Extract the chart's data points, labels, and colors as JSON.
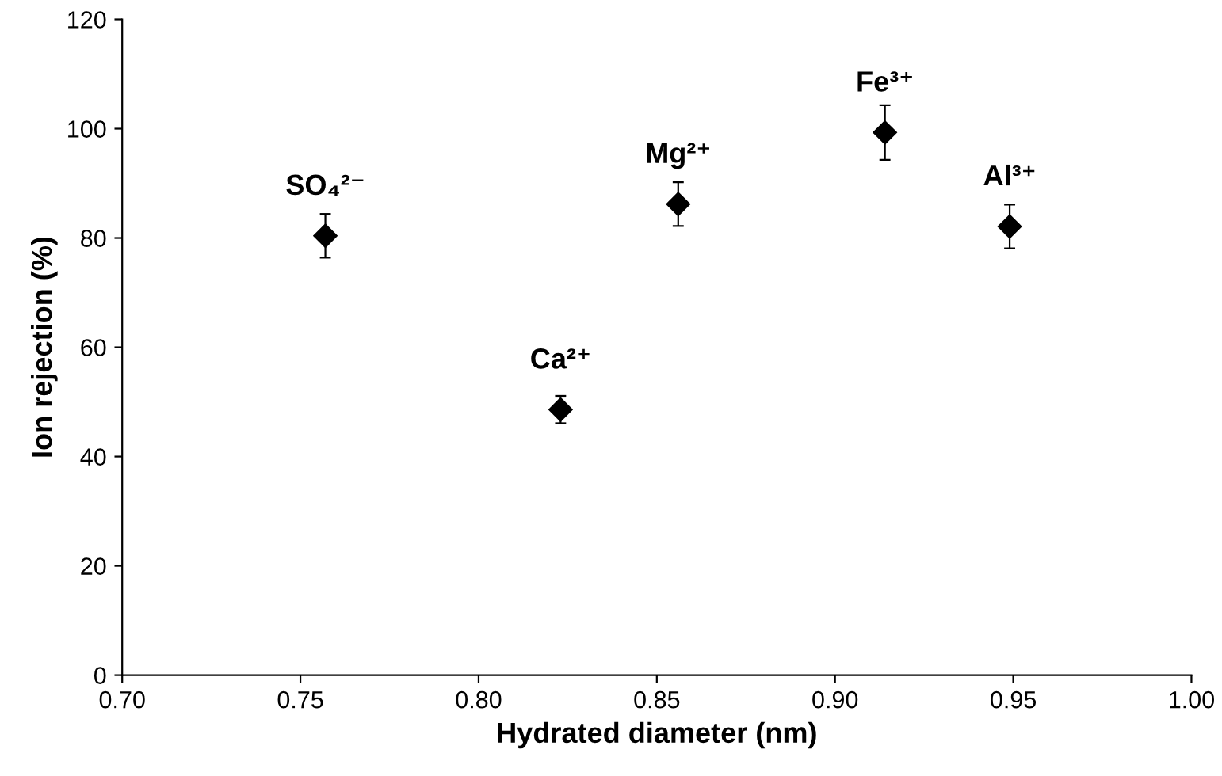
{
  "chart_data": {
    "type": "scatter",
    "xlabel": "Hydrated diameter (nm)",
    "ylabel": "Ion rejection (%)",
    "x": [
      0.757,
      0.823,
      0.856,
      0.914,
      0.949
    ],
    "series": [
      {
        "color": "#000000",
        "values": [
          80.4,
          48.6,
          86.2,
          99.3,
          82.1
        ],
        "errors": [
          4,
          2.5,
          4,
          5,
          4
        ]
      }
    ],
    "marker": "diamond",
    "grid": false,
    "legend": false,
    "xlim": [
      0.7,
      1.0
    ],
    "xticks": [
      {
        "value": 0.7,
        "label": "0.70"
      },
      {
        "value": 0.75,
        "label": "0.75"
      },
      {
        "value": 0.8,
        "label": "0.80"
      },
      {
        "value": 0.85,
        "label": "0.85"
      },
      {
        "value": 0.9,
        "label": "0.90"
      },
      {
        "value": 0.95,
        "label": "0.95"
      },
      {
        "value": 1.0,
        "label": "1.00"
      }
    ],
    "ylim": [
      0,
      120
    ],
    "yticks": [
      0,
      20,
      40,
      60,
      80,
      100,
      120
    ],
    "annotations": [
      {
        "text": "SO₄²⁻",
        "x": 0.757,
        "y": 80.4
      },
      {
        "text": "Ca²⁺",
        "x": 0.823,
        "y": 48.6
      },
      {
        "text": "Mg²⁺",
        "x": 0.856,
        "y": 86.2
      },
      {
        "text": "Fe³⁺",
        "x": 0.914,
        "y": 99.3
      },
      {
        "text": "Al³⁺",
        "x": 0.949,
        "y": 82.1
      }
    ]
  }
}
